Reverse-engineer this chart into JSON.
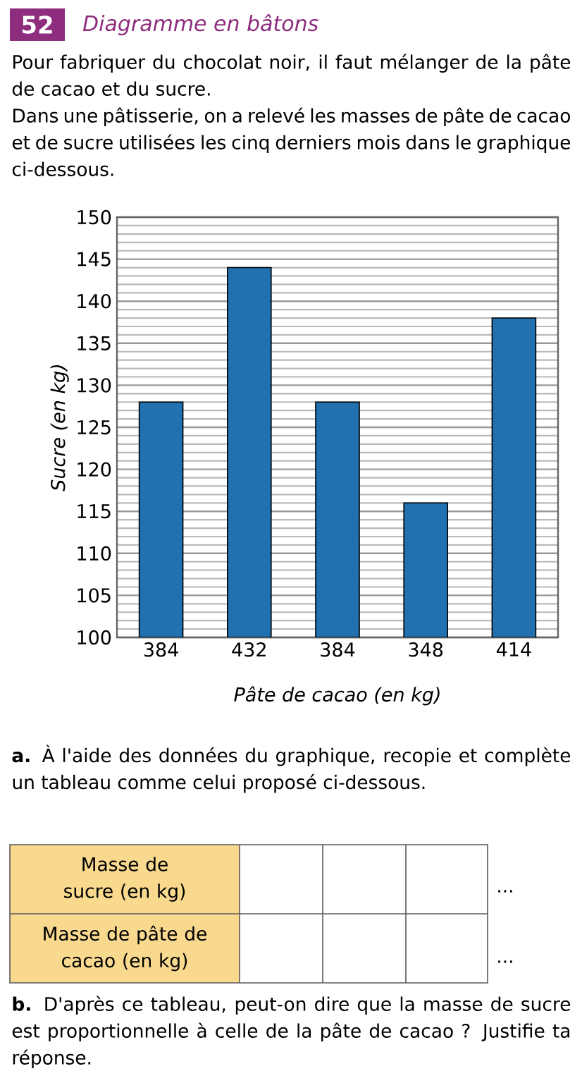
{
  "chart_data": {
    "type": "bar",
    "title": "Diagramme en bâtons",
    "subtitle": "Pour fabriquer du chocolat noir, il faut mélanger de la pâte de cacao et du sucre.",
    "xlabel": "Pâte de cacao (en kg)",
    "ylabel": "Sucre (en kg)",
    "categories": [
      "384",
      "432",
      "384",
      "348",
      "414"
    ],
    "values": [
      128,
      144,
      128,
      116,
      138
    ],
    "color": "#2171b0",
    "ylim": [
      100,
      150
    ],
    "yticks": [
      100,
      105,
      110,
      115,
      120,
      125,
      130,
      135,
      140,
      145,
      150
    ],
    "grid": "y",
    "annotations": [
      "52",
      "Dans une pâtisserie, on a relevé les masses de pâte de cacao et de sucre utilisées les cinq derniers mois dans le graphique ci-dessous.",
      "**a.** À l'aide des données du graphique, recopie et complète un tableau comme celui proposé ci-dessous.",
      "Masse de sucre (en kg)",
      "Masse de pâte de cacao (en kg)",
      "...",
      "...",
      "**b.** D'après ce tableau, peut-on dire que la masse de sucre est proportionnelle à celle de la pâte de cacao ? Justifie ta réponse."
    ]
  }
}
